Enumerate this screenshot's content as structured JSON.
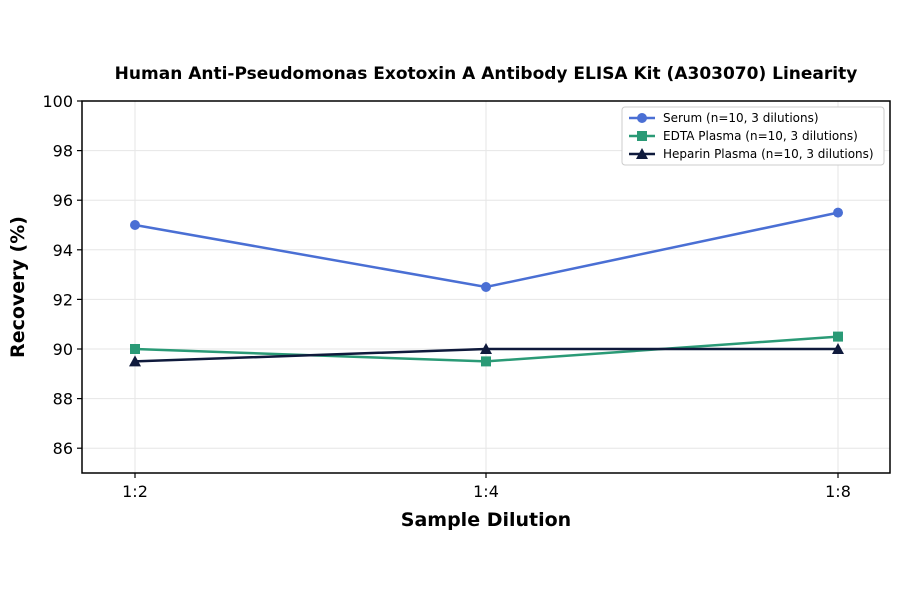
{
  "chart_data": {
    "type": "line",
    "title": "Human Anti-Pseudomonas Exotoxin A Antibody ELISA Kit (A303070) Linearity",
    "xlabel": "Sample Dilution",
    "ylabel": "Recovery (%)",
    "categories": [
      "1:2",
      "1:4",
      "1:8"
    ],
    "ylim": [
      85,
      100
    ],
    "yticks": [
      86,
      88,
      90,
      92,
      94,
      96,
      98,
      100
    ],
    "grid": true,
    "legend_position": "top-right",
    "series": [
      {
        "name": "Serum (n=10, 3 dilutions)",
        "values": [
          95,
          92.5,
          95.5
        ],
        "color": "#4a6fd4",
        "marker": "circle"
      },
      {
        "name": "EDTA Plasma (n=10, 3 dilutions)",
        "values": [
          90,
          89.5,
          90.5
        ],
        "color": "#2a9a76",
        "marker": "square"
      },
      {
        "name": "Heparin Plasma (n=10, 3 dilutions)",
        "values": [
          89.5,
          90,
          90
        ],
        "color": "#0f1a3c",
        "marker": "triangle"
      }
    ]
  }
}
